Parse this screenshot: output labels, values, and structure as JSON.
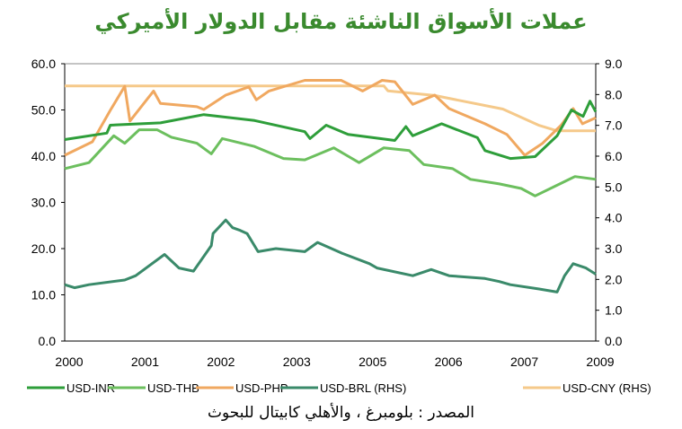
{
  "chart_data": {
    "type": "line",
    "title": "عملات الأسواق الناشئة مقابل الدولار الأميركي",
    "source": "المصدر : بلومبرغ ، والأهلي كابيتال للبحوث",
    "x_tick_labels": [
      "2000",
      "2001",
      "2002",
      "2003",
      "2005",
      "2006",
      "2007",
      "2009"
    ],
    "xlim": [
      2000,
      2009.2
    ],
    "y_left": {
      "ylim": [
        0,
        60
      ],
      "tick_labels": [
        "0.0",
        "10.0",
        "20.0",
        "30.0",
        "40.0",
        "50.0",
        "60.0"
      ]
    },
    "y_right": {
      "ylim": [
        0,
        9
      ],
      "tick_labels": [
        "0.0",
        "1.0",
        "2.0",
        "3.0",
        "4.0",
        "5.0",
        "6.0",
        "7.0",
        "8.0",
        "9.0"
      ]
    },
    "grid": false,
    "legend_placement": "bottom",
    "series": [
      {
        "name": "USD-INR",
        "axis": "left",
        "color": "#2e9e3a",
        "x": [
          2000.0,
          2000.73,
          2000.79,
          2001.66,
          2002.41,
          2003.29,
          2004.16,
          2004.25,
          2004.53,
          2004.91,
          2005.72,
          2005.91,
          2006.03,
          2006.53,
          2007.15,
          2007.28,
          2007.72,
          2008.15,
          2008.53,
          2008.78,
          2008.98,
          2009.1,
          2009.2
        ],
        "values": [
          43.6,
          45.0,
          46.7,
          47.2,
          49.0,
          47.7,
          45.3,
          43.8,
          46.7,
          44.7,
          43.4,
          46.4,
          44.4,
          47.0,
          44.0,
          41.2,
          39.5,
          39.9,
          44.4,
          50.0,
          48.6,
          51.9,
          49.6
        ]
      },
      {
        "name": "USD-THB",
        "axis": "left",
        "color": "#6cbf5e",
        "x": [
          2000.0,
          2000.42,
          2000.85,
          2001.04,
          2001.29,
          2001.6,
          2001.85,
          2002.29,
          2002.54,
          2002.73,
          2003.29,
          2003.79,
          2004.16,
          2004.66,
          2005.1,
          2005.53,
          2005.97,
          2006.22,
          2006.72,
          2007.03,
          2007.53,
          2007.91,
          2008.15,
          2008.53,
          2008.84,
          2009.2
        ],
        "values": [
          37.3,
          38.6,
          44.4,
          42.8,
          45.7,
          45.7,
          44.1,
          42.8,
          40.5,
          43.8,
          42.1,
          39.5,
          39.2,
          41.8,
          38.6,
          41.8,
          41.2,
          38.2,
          37.3,
          35.0,
          34.0,
          33.0,
          31.4,
          33.7,
          35.6,
          35.0
        ]
      },
      {
        "name": "USD-PHP",
        "axis": "left",
        "color": "#f0a860",
        "x": [
          2000.0,
          2000.48,
          2000.79,
          2001.04,
          2001.13,
          2001.54,
          2001.66,
          2002.29,
          2002.41,
          2002.79,
          2003.19,
          2003.32,
          2003.54,
          2004.16,
          2004.79,
          2005.16,
          2005.5,
          2005.72,
          2006.03,
          2006.41,
          2006.66,
          2007.28,
          2007.66,
          2007.97,
          2008.28,
          2008.6,
          2008.81,
          2008.97,
          2009.2
        ],
        "values": [
          40.2,
          43.1,
          49.9,
          55.1,
          47.6,
          54.1,
          51.4,
          50.7,
          50.1,
          53.2,
          55.0,
          52.2,
          54.1,
          56.4,
          56.4,
          54.1,
          56.4,
          56.1,
          51.2,
          53.2,
          50.3,
          47.0,
          44.7,
          40.2,
          42.8,
          46.7,
          50.3,
          47.0,
          48.3
        ]
      },
      {
        "name": "USD-BRL (RHS)",
        "axis": "right",
        "color": "#3a8a6a",
        "x": [
          2000.0,
          2000.17,
          2000.42,
          2001.04,
          2001.23,
          2001.73,
          2001.98,
          2002.23,
          2002.54,
          2002.57,
          2002.79,
          2002.91,
          2003.04,
          2003.16,
          2003.35,
          2003.66,
          2004.16,
          2004.38,
          2004.79,
          2005.28,
          2005.41,
          2006.03,
          2006.35,
          2006.66,
          2007.28,
          2007.53,
          2007.72,
          2008.22,
          2008.53,
          2008.66,
          2008.81,
          2009.03,
          2009.2
        ],
        "values": [
          1.83,
          1.73,
          1.83,
          1.98,
          2.12,
          2.81,
          2.37,
          2.27,
          3.1,
          3.49,
          3.93,
          3.68,
          3.59,
          3.49,
          2.9,
          3.0,
          2.9,
          3.2,
          2.86,
          2.51,
          2.37,
          2.12,
          2.32,
          2.12,
          2.03,
          1.93,
          1.83,
          1.69,
          1.59,
          2.12,
          2.51,
          2.37,
          2.17
        ]
      },
      {
        "name": "USD-CNY (RHS)",
        "axis": "right",
        "color": "#f5c98a",
        "x": [
          2000.0,
          2005.53,
          2005.6,
          2006.41,
          2007.59,
          2008.22,
          2008.53,
          2009.2
        ],
        "values": [
          8.28,
          8.28,
          8.12,
          7.97,
          7.53,
          7.0,
          6.82,
          6.82
        ]
      }
    ]
  }
}
